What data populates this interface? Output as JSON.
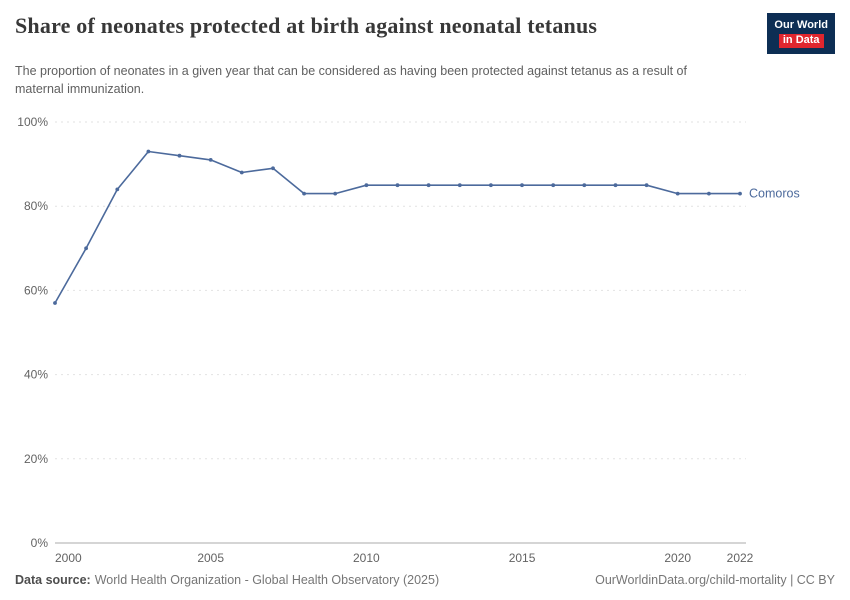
{
  "header": {
    "title": "Share of neonates protected at birth against neonatal tetanus",
    "subtitle": "The proportion of neonates in a given year that can be considered as having been protected against tetanus as a result of maternal immunization.",
    "logo": {
      "line1": "Our World",
      "line2": "in Data",
      "bg": "#0d2e54",
      "accent": "#e0262e"
    }
  },
  "chart_data": {
    "type": "line",
    "title": "Share of neonates protected at birth against neonatal tetanus",
    "xlabel": "",
    "ylabel": "",
    "x": [
      2000,
      2001,
      2002,
      2003,
      2004,
      2005,
      2006,
      2007,
      2008,
      2009,
      2010,
      2011,
      2012,
      2013,
      2014,
      2015,
      2016,
      2017,
      2018,
      2019,
      2020,
      2021,
      2022
    ],
    "series": [
      {
        "name": "Comoros",
        "color": "#4c6a9c",
        "values": [
          57,
          70,
          84,
          93,
          92,
          91,
          88,
          89,
          83,
          83,
          85,
          85,
          85,
          85,
          85,
          85,
          85,
          85,
          85,
          85,
          83,
          83,
          83
        ]
      }
    ],
    "ylim": [
      0,
      100
    ],
    "yticks": [
      0,
      20,
      40,
      60,
      80,
      100
    ],
    "ytick_labels": [
      "0%",
      "20%",
      "40%",
      "60%",
      "80%",
      "100%"
    ],
    "xticks": [
      2000,
      2005,
      2010,
      2015,
      2020,
      2022
    ],
    "grid": "horizontal-dashed",
    "legend": "end-of-line-label",
    "colors": {
      "grid": "#e2e2e2",
      "axis": "#ababab",
      "tick_text": "#636363"
    }
  },
  "footer": {
    "source_label": "Data source:",
    "source_text": "World Health Organization - Global Health Observatory (2025)",
    "link_text": "OurWorldinData.org/child-mortality | CC BY"
  }
}
